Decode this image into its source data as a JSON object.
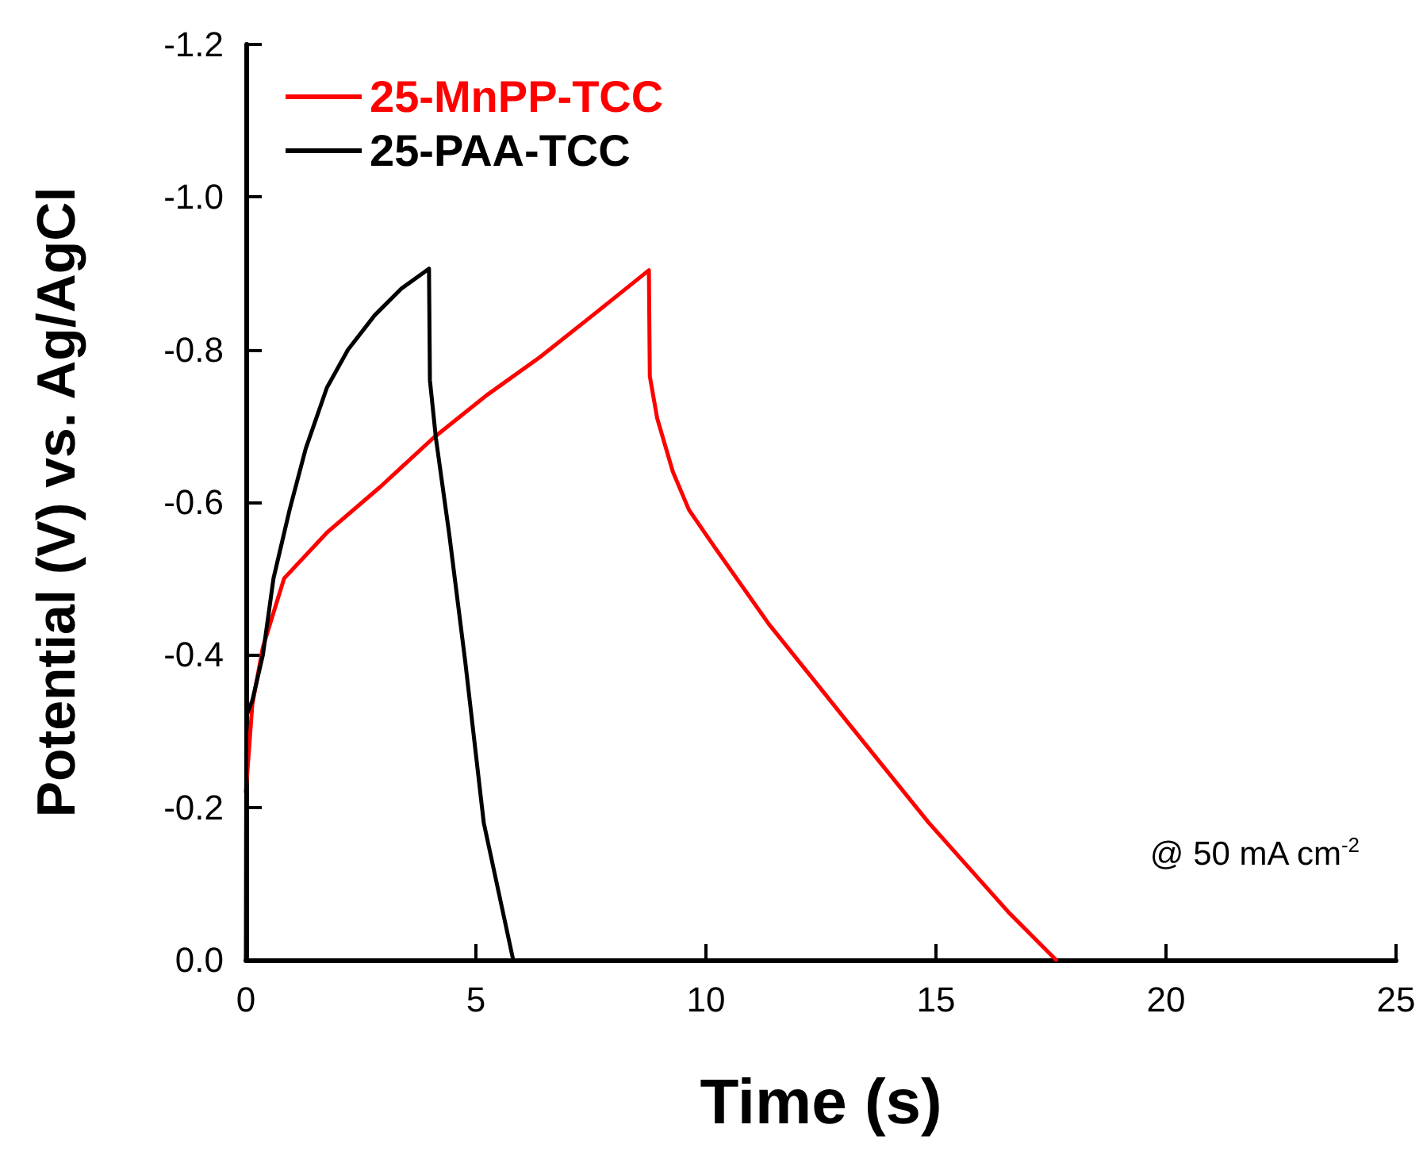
{
  "chart_data": {
    "type": "line",
    "xlabel": "Time (s)",
    "ylabel": "Potential (V) vs. Ag/AgCl",
    "xlim": [
      0,
      25
    ],
    "xticks": [
      0,
      5,
      10,
      15,
      20,
      25
    ],
    "ylim": [
      0.0,
      -1.2
    ],
    "yticks": [
      {
        "value": 0.0,
        "label": "0.0"
      },
      -0.2,
      -0.4,
      -0.6,
      -0.8,
      {
        "value": -1.0,
        "label": "-1.0"
      },
      -1.2
    ],
    "legend": "top left",
    "grid": false,
    "marker": "none",
    "line_style": "solid",
    "annotations": [
      "@ 50 mA cm$^{-2}$"
    ],
    "series": [
      {
        "name": "25-MnPP-TCC",
        "color": "#ff0000",
        "x": [
          0,
          0.14,
          0.37,
          0.83,
          1.76,
          2.92,
          4.07,
          5.23,
          6.39,
          7.54,
          8.76,
          8.78,
          8.94,
          9.28,
          9.63,
          10.2,
          11.37,
          13.1,
          14.84,
          16.57,
          17.61
        ],
        "values": [
          -0.22,
          -0.335,
          -0.41,
          -0.5,
          -0.56,
          -0.62,
          -0.684,
          -0.74,
          -0.79,
          -0.845,
          -0.904,
          -0.765,
          -0.71,
          -0.64,
          -0.59,
          -0.54,
          -0.44,
          -0.31,
          -0.18,
          -0.063,
          0
        ]
      },
      {
        "name": "25-PAA-TCC",
        "color": "#000000",
        "x": [
          0,
          0.01,
          0.14,
          0.37,
          0.6,
          0.95,
          1.3,
          1.76,
          2.22,
          2.8,
          3.38,
          3.98,
          4.0,
          4.13,
          4.42,
          4.77,
          5.17,
          5.81
        ],
        "values": [
          0,
          -0.32,
          -0.34,
          -0.4,
          -0.5,
          -0.59,
          -0.67,
          -0.75,
          -0.8,
          -0.845,
          -0.88,
          -0.906,
          -0.76,
          -0.684,
          -0.558,
          -0.39,
          -0.18,
          0
        ]
      }
    ]
  }
}
